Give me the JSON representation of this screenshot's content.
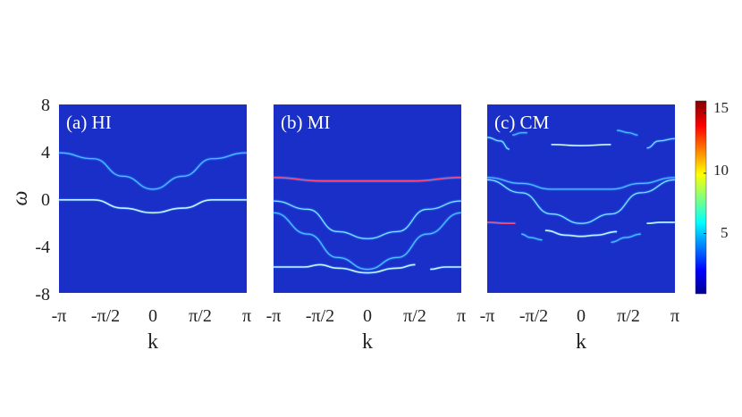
{
  "colors": {
    "background": "#1a2fc8",
    "colormap": [
      "#00008f",
      "#0000ff",
      "#0080ff",
      "#00ffff",
      "#80ff80",
      "#ffff00",
      "#ff8000",
      "#ff0000",
      "#800000"
    ]
  },
  "icon": "none",
  "chart_data": [
    {
      "type": "heatmap",
      "title": "(a) HI",
      "xlabel": "k",
      "ylabel": "ω",
      "xlim": [
        -3.1416,
        3.1416
      ],
      "ylim": [
        -8,
        8
      ],
      "xticks": [
        "-π",
        "-π/2",
        "0",
        "π/2",
        "π"
      ],
      "yticks": [
        "8",
        "4",
        "0",
        "-4",
        "-8"
      ],
      "bands": [
        {
          "x": [
            -3.14,
            -2.0,
            -1.0,
            0.0,
            1.0,
            2.0,
            3.14
          ],
          "y": [
            3.9,
            3.4,
            1.9,
            0.8,
            1.9,
            3.4,
            3.9
          ],
          "intensity": 0.5
        },
        {
          "x": [
            -3.14,
            -2.0,
            -1.0,
            0.0,
            1.0,
            2.0,
            3.14
          ],
          "y": [
            -0.1,
            -0.1,
            -0.8,
            -1.2,
            -0.8,
            -0.1,
            -0.1
          ],
          "intensity": 1.0
        }
      ]
    },
    {
      "type": "heatmap",
      "title": "(b) MI",
      "xlabel": "k",
      "ylabel": "",
      "xlim": [
        -3.1416,
        3.1416
      ],
      "ylim": [
        -8,
        8
      ],
      "xticks": [
        "-π",
        "-π/2",
        "0",
        "π/2",
        "π"
      ],
      "bands": [
        {
          "x": [
            -3.14,
            -1.5,
            0.0,
            1.5,
            3.14
          ],
          "y": [
            1.8,
            1.5,
            1.5,
            1.5,
            1.8
          ],
          "intensity": 1.6
        },
        {
          "x": [
            -3.14,
            -2.0,
            -1.0,
            0.0,
            1.0,
            2.0,
            3.14
          ],
          "y": [
            -0.2,
            -0.9,
            -2.8,
            -3.4,
            -2.8,
            -0.9,
            -0.2
          ],
          "intensity": 0.9
        },
        {
          "x": [
            -3.14,
            -2.0,
            -1.0,
            0.0,
            1.0,
            2.0,
            3.14
          ],
          "y": [
            -1.2,
            -3.0,
            -5.0,
            -6.0,
            -5.0,
            -3.0,
            -1.2
          ],
          "intensity": 0.5
        },
        {
          "x": [
            -3.14,
            -2.1,
            -1.6,
            -1.0,
            0.0,
            1.0,
            1.6
          ],
          "y": [
            -5.8,
            -5.8,
            -5.6,
            -5.9,
            -6.3,
            -5.9,
            -5.6
          ],
          "intensity": 1.1
        },
        {
          "x": [
            2.1,
            2.6,
            3.14
          ],
          "y": [
            -6.0,
            -5.8,
            -5.8
          ],
          "intensity": 1.1
        }
      ]
    },
    {
      "type": "heatmap",
      "title": "(c) CM",
      "xlabel": "k",
      "ylabel": "",
      "xlim": [
        -3.1416,
        3.1416
      ],
      "ylim": [
        -8,
        8
      ],
      "xticks": [
        "-π",
        "-π/2",
        "0",
        "π/2",
        "π"
      ],
      "bands": [
        {
          "x": [
            -3.14,
            -2.7,
            -2.4
          ],
          "y": [
            5.2,
            4.9,
            4.2
          ],
          "intensity": 0.9
        },
        {
          "x": [
            -2.3,
            -2.0,
            -1.8
          ],
          "y": [
            5.4,
            5.6,
            5.6
          ],
          "intensity": 0.7
        },
        {
          "x": [
            1.2,
            1.6,
            1.9
          ],
          "y": [
            5.8,
            5.6,
            5.4
          ],
          "intensity": 0.7
        },
        {
          "x": [
            2.2,
            2.6,
            3.14
          ],
          "y": [
            4.3,
            4.9,
            5.1
          ],
          "intensity": 0.9
        },
        {
          "x": [
            -1.0,
            0.0,
            1.0
          ],
          "y": [
            4.6,
            4.5,
            4.6
          ],
          "intensity": 1.0
        },
        {
          "x": [
            -3.14,
            -2.0,
            -1.0,
            0.0,
            1.0,
            2.0,
            3.14
          ],
          "y": [
            1.8,
            1.3,
            0.8,
            0.8,
            0.8,
            1.3,
            1.8
          ],
          "intensity": 0.5
        },
        {
          "x": [
            -3.14,
            -2.0,
            -1.0,
            0.0,
            1.0,
            2.0,
            3.14
          ],
          "y": [
            1.6,
            0.5,
            -1.3,
            -2.1,
            -1.3,
            0.5,
            1.6
          ],
          "intensity": 0.9
        },
        {
          "x": [
            -3.14,
            -2.5,
            -2.2
          ],
          "y": [
            -2.0,
            -2.1,
            -2.1
          ],
          "intensity": 1.6
        },
        {
          "x": [
            2.2,
            2.7,
            3.14
          ],
          "y": [
            -2.1,
            -2.0,
            -2.0
          ],
          "intensity": 1.3
        },
        {
          "x": [
            -1.2,
            -0.5,
            0.0,
            0.5,
            1.2
          ],
          "y": [
            -2.7,
            -3.1,
            -3.2,
            -3.1,
            -2.8
          ],
          "intensity": 1.0
        },
        {
          "x": [
            -2.0,
            -1.7,
            -1.3
          ],
          "y": [
            -3.0,
            -3.3,
            -3.5
          ],
          "intensity": 0.7
        },
        {
          "x": [
            1.0,
            1.5,
            2.0
          ],
          "y": [
            -3.7,
            -3.3,
            -3.0
          ],
          "intensity": 0.7
        }
      ]
    }
  ],
  "colorbar": {
    "ticks": [
      "15",
      "10",
      "5"
    ],
    "tick_values": [
      15,
      10,
      5
    ],
    "range": [
      0,
      16
    ]
  }
}
